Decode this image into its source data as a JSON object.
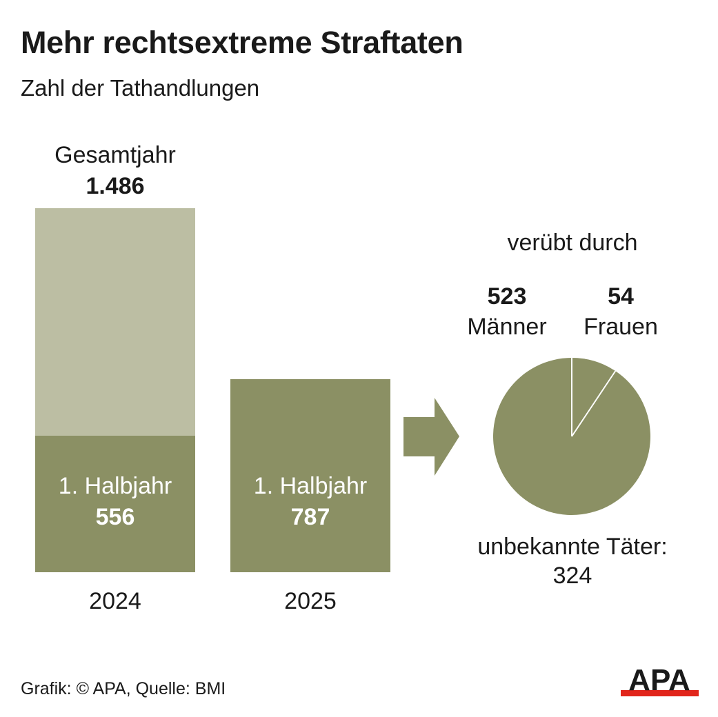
{
  "title": "Mehr rechtsextreme Straftaten",
  "subtitle": "Zahl der Tathandlungen",
  "footer": "Grafik: © APA, Quelle: BMI",
  "logo_text": "APA",
  "colors": {
    "full_year": "#bcbea3",
    "half_year": "#8b9064",
    "pie_lines": "#ffffff",
    "logo_red": "#e1251b",
    "text": "#1a1a1a"
  },
  "bars": {
    "full_year_label": "Gesamtjahr",
    "full_year_value_text": "1.486",
    "full_year_value": 1486,
    "half_2024_label": "1. Halbjahr",
    "half_2024_value_text": "556",
    "half_2024_value": 556,
    "half_2025_label": "1. Halbjahr",
    "half_2025_value_text": "787",
    "half_2025_value": 787,
    "year_2024": "2024",
    "year_2025": "2025"
  },
  "pie": {
    "heading": "verübt durch",
    "maenner_value": "523",
    "maenner_label": "Männer",
    "frauen_value": "54",
    "frauen_label": "Frauen",
    "unknown_label": "unbekannte Täter:",
    "unknown_value": "324"
  },
  "chart_data": [
    {
      "type": "bar",
      "categories": [
        "2024",
        "2025"
      ],
      "series": [
        {
          "name": "Gesamtjahr",
          "values": [
            1486,
            null
          ]
        },
        {
          "name": "1. Halbjahr",
          "values": [
            556,
            787
          ]
        }
      ],
      "ylim": [
        0,
        1486
      ]
    },
    {
      "type": "pie",
      "categories": [
        "Frauen",
        "Männer"
      ],
      "values": [
        54,
        523
      ]
    }
  ]
}
